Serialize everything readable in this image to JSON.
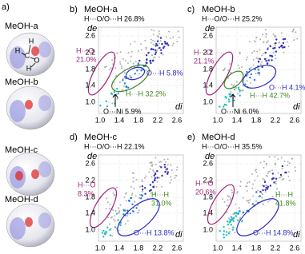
{
  "figure": {
    "label_a": "a)",
    "molecules": [
      "MeOH-a",
      "MeOH-b",
      "MeOH-c",
      "MeOH-d"
    ],
    "atoms": [
      "H",
      "H",
      "C",
      "O",
      "H"
    ],
    "axis": {
      "y_label": "de",
      "x_label": "di",
      "ticks": [
        "1.0",
        "1.4",
        "1.8",
        "2.2",
        "2.6"
      ]
    },
    "panels": [
      {
        "label": "b)",
        "title": "MeOH-a",
        "subtitle": "H···O/O···H 26.8%",
        "annotations": [
          {
            "lines": [
              "H···O",
              "21.0%"
            ],
            "color": "#a0207a"
          },
          {
            "lines": [
              "O···H 5.8%"
            ],
            "color": "#2a2ac8"
          },
          {
            "lines": [
              "H···H 32.2%"
            ],
            "color": "#3d8a1e"
          },
          {
            "lines": [
              "O···Ni 5.9%"
            ],
            "color": "#000000"
          }
        ]
      },
      {
        "label": "c)",
        "title": "MeOH-b",
        "subtitle": "H···O/O···H 25.2%",
        "annotations": [
          {
            "lines": [
              "H···O",
              "21.1%"
            ],
            "color": "#a0207a"
          },
          {
            "lines": [
              "O···H 4.1%"
            ],
            "color": "#2a2ac8"
          },
          {
            "lines": [
              "H···H 42.7%"
            ],
            "color": "#3d8a1e"
          },
          {
            "lines": [
              "O···Ni 6.0%"
            ],
            "color": "#000000"
          }
        ]
      },
      {
        "label": "d)",
        "title": "MeOH-c",
        "subtitle": "H···O/O···H 22.1%",
        "annotations": [
          {
            "lines": [
              "H···O",
              "8.3%"
            ],
            "color": "#a0207a"
          },
          {
            "lines": [
              "H···H",
              "31.0%"
            ],
            "color": "#3d8a1e"
          },
          {
            "lines": [
              "O···H 13.8%"
            ],
            "color": "#2a2ac8"
          }
        ]
      },
      {
        "label": "e)",
        "title": "MeOH-d",
        "subtitle": "H···O/O···H 35.5%",
        "annotations": [
          {
            "lines": [
              "H···O",
              "20.6%"
            ],
            "color": "#a0207a"
          },
          {
            "lines": [
              "H···H",
              "41.8%"
            ],
            "color": "#3d8a1e"
          },
          {
            "lines": [
              "O···H 14.8%"
            ],
            "color": "#2a2ac8"
          }
        ]
      }
    ]
  }
}
